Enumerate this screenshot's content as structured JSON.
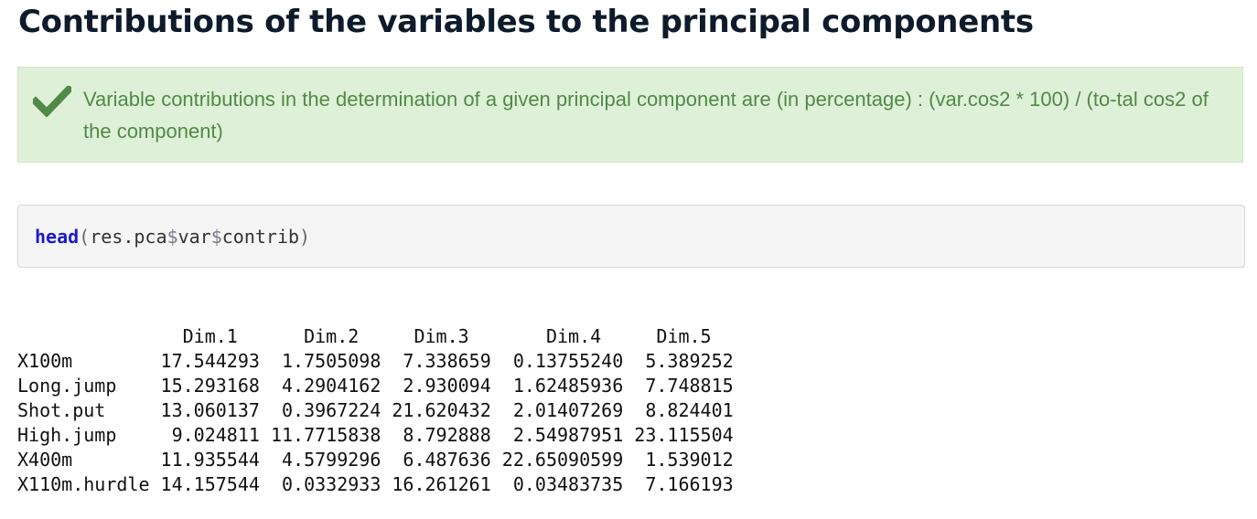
{
  "heading": "Contributions of the variables to the principal components",
  "alert": {
    "icon": "checkmark-icon",
    "color": "#4f8a46",
    "text": "Variable contributions in the determination of a given principal component are (in percentage) : (var.cos2 * 100) / (to-tal cos2 of the component)"
  },
  "code": {
    "function": "head",
    "open_paren": "(",
    "arg_part1": "res.pca",
    "dollar1": "$",
    "arg_part2": "var",
    "dollar2": "$",
    "arg_part3": "contrib",
    "close_paren": ")"
  },
  "output": {
    "header": "               Dim.1      Dim.2     Dim.3       Dim.4     Dim.5",
    "rows": [
      "X100m        17.544293  1.7505098  7.338659  0.13755240  5.389252",
      "Long.jump    15.293168  4.2904162  2.930094  1.62485936  7.748815",
      "Shot.put     13.060137  0.3967224 21.620432  2.01407269  8.824401",
      "High.jump     9.024811 11.7715838  8.792888  2.54987951 23.115504",
      "X400m        11.935544  4.5799296  6.487636 22.65090599  1.539012",
      "X110m.hurdle 14.157544  0.0332933 16.261261  0.03483735  7.166193"
    ]
  }
}
